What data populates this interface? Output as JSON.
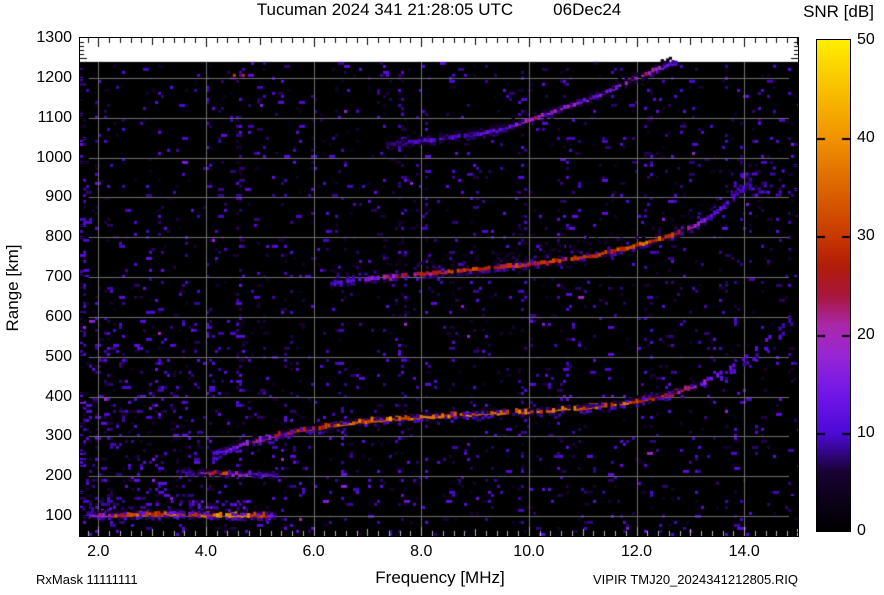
{
  "title": {
    "station_line": "Tucuman 2024 341 21:28:05 UTC",
    "date": "06Dec24"
  },
  "colorbar": {
    "title": "SNR [dB]",
    "unit": "dB",
    "min": 0,
    "max": 50,
    "tick_values": [
      0,
      10,
      20,
      30,
      40,
      50
    ],
    "tick_labels": [
      "0",
      "10",
      "20",
      "30",
      "40",
      "50"
    ]
  },
  "axes": {
    "x_label": "Frequency [MHz]",
    "y_label": "Range [km]",
    "x_tick_labels": [
      "2.0",
      "4.0",
      "6.0",
      "8.0",
      "10.0",
      "12.0",
      "14.0"
    ],
    "x_ticks_mhz": [
      2,
      4,
      6,
      8,
      10,
      12,
      14
    ],
    "y_tick_labels": [
      "100",
      "200",
      "300",
      "400",
      "500",
      "600",
      "700",
      "800",
      "900",
      "1000",
      "1100",
      "1200",
      "1300"
    ],
    "y_ticks_km": [
      100,
      200,
      300,
      400,
      500,
      600,
      700,
      800,
      900,
      1000,
      1100,
      1200,
      1300
    ],
    "f_min_mhz": 1.66,
    "f_max_mhz": 15.0,
    "r_min_km": 50,
    "r_max_km": 1300,
    "data_top_km": 1240
  },
  "footer": {
    "rx_mask": "RxMask 11111111",
    "file_name": "VIPIR  TMJ20_2024341212805.RIQ"
  },
  "chart_data": {
    "type": "heatmap",
    "title": "Tucuman 2024 341 21:28:05 UTC 06Dec24",
    "xlabel": "Frequency [MHz]",
    "ylabel": "Range [km]",
    "zlabel": "SNR [dB]",
    "xlim": [
      1.66,
      15.0
    ],
    "ylim": [
      50,
      1300
    ],
    "zlim": [
      0,
      50
    ],
    "grid": {
      "x_every_mhz": 2,
      "y_every_km": 100,
      "color": "#6e6e6e"
    },
    "background_value_db": 0,
    "colormap_stops": [
      [
        0,
        0,
        0,
        0
      ],
      [
        6,
        24,
        2,
        50
      ],
      [
        10,
        76,
        10,
        214
      ],
      [
        14,
        114,
        22,
        232
      ],
      [
        18,
        152,
        38,
        212
      ],
      [
        21,
        170,
        40,
        170
      ],
      [
        24,
        168,
        22,
        60
      ],
      [
        27,
        178,
        28,
        10
      ],
      [
        30,
        200,
        56,
        0
      ],
      [
        40,
        241,
        146,
        0
      ],
      [
        50,
        255,
        238,
        0
      ]
    ],
    "noise": {
      "seed": 42,
      "base_density": 0.03,
      "speckle_db": [
        3.5,
        12
      ],
      "cloud": {
        "f_max": 4.9,
        "km_min": 75,
        "km_max": 700,
        "peak_density": 0.17
      }
    },
    "rfi_lines": [
      {
        "f": 1.7,
        "km0": 60,
        "km1": 1240,
        "boost": 0.22,
        "w": 5
      },
      {
        "f": 1.95,
        "km0": 60,
        "km1": 1240,
        "boost": 0.12,
        "w": 4
      },
      {
        "f": 4.02,
        "km0": 60,
        "km1": 1240,
        "boost": 0.1,
        "w": 5
      },
      {
        "f": 4.58,
        "km0": 60,
        "km1": 1240,
        "boost": 0.2,
        "w": 6
      },
      {
        "f": 5.05,
        "km0": 60,
        "km1": 1240,
        "boost": 0.08,
        "w": 4
      },
      {
        "f": 5.42,
        "km0": 60,
        "km1": 1240,
        "boost": 0.1,
        "w": 5
      },
      {
        "f": 5.95,
        "km0": 400,
        "km1": 1240,
        "boost": 0.07,
        "w": 4
      },
      {
        "f": 6.5,
        "km0": 60,
        "km1": 1240,
        "boost": 0.12,
        "w": 5
      },
      {
        "f": 7.28,
        "km0": 60,
        "km1": 1240,
        "boost": 0.08,
        "w": 4
      },
      {
        "f": 7.62,
        "km0": 60,
        "km1": 1240,
        "boost": 0.19,
        "w": 8
      },
      {
        "f": 8.06,
        "km0": 300,
        "km1": 1240,
        "boost": 0.08,
        "w": 4
      },
      {
        "f": 8.52,
        "km0": 60,
        "km1": 1240,
        "boost": 0.09,
        "w": 5
      },
      {
        "f": 9.16,
        "km0": 60,
        "km1": 900,
        "boost": 0.06,
        "w": 4
      },
      {
        "f": 9.82,
        "km0": 60,
        "km1": 1240,
        "boost": 0.1,
        "w": 5
      },
      {
        "f": 10.55,
        "km0": 60,
        "km1": 1240,
        "boost": 0.07,
        "w": 4
      },
      {
        "f": 11.3,
        "km0": 200,
        "km1": 1100,
        "boost": 0.06,
        "w": 4
      },
      {
        "f": 12.15,
        "km0": 60,
        "km1": 1240,
        "boost": 0.09,
        "w": 5
      },
      {
        "f": 12.8,
        "km0": 60,
        "km1": 1240,
        "boost": 0.07,
        "w": 4
      },
      {
        "f": 13.65,
        "km0": 60,
        "km1": 1240,
        "boost": 0.08,
        "w": 5
      },
      {
        "f": 14.3,
        "km0": 60,
        "km1": 1240,
        "boost": 0.07,
        "w": 4
      },
      {
        "f": 14.82,
        "km0": 60,
        "km1": 1240,
        "boost": 0.08,
        "w": 4
      }
    ],
    "patches": [
      {
        "f0": 2.9,
        "f1": 4.75,
        "km0": 103,
        "km1": 140,
        "density": 0.3,
        "v0": 6,
        "v1": 14
      },
      {
        "f0": 1.7,
        "f1": 2.75,
        "km0": 93,
        "km1": 122,
        "density": 0.25,
        "v0": 6,
        "v1": 13
      },
      {
        "f0": 13.75,
        "f1": 14.7,
        "km0": 895,
        "km1": 985,
        "density": 0.15,
        "v0": 6,
        "v1": 12
      },
      {
        "f0": 4.5,
        "f1": 4.72,
        "km0": 1100,
        "km1": 1210,
        "density": 0.1,
        "v0": 18,
        "v1": 32
      }
    ],
    "traces": [
      {
        "name": "E-layer echo ~100 km",
        "pts": [
          [
            1.78,
            102,
            10
          ],
          [
            2.0,
            103,
            22
          ],
          [
            2.3,
            104,
            30
          ],
          [
            2.7,
            105,
            33
          ],
          [
            3.1,
            106,
            34
          ],
          [
            3.5,
            107,
            32
          ],
          [
            3.9,
            105,
            34
          ],
          [
            4.3,
            103,
            36
          ],
          [
            4.7,
            103,
            37
          ],
          [
            5.0,
            103,
            31
          ],
          [
            5.15,
            102,
            20
          ],
          [
            5.3,
            101,
            10
          ]
        ],
        "w": 5,
        "fa": 10,
        "fb": 6,
        "fv": 12
      },
      {
        "name": "Stratification ~210 km",
        "pts": [
          [
            3.55,
            213,
            8
          ],
          [
            3.8,
            211,
            12
          ],
          [
            4.0,
            210,
            24
          ],
          [
            4.15,
            209,
            30
          ],
          [
            4.35,
            208,
            28
          ],
          [
            4.6,
            207,
            16
          ],
          [
            4.85,
            206,
            13
          ],
          [
            5.1,
            205,
            12
          ],
          [
            5.35,
            204,
            9
          ]
        ],
        "w": 4,
        "fa": 8,
        "fb": 5,
        "fv": 9
      },
      {
        "name": "F-region 1st hop",
        "pts": [
          [
            4.12,
            258,
            9
          ],
          [
            4.3,
            264,
            13
          ],
          [
            4.55,
            276,
            16
          ],
          [
            4.8,
            286,
            18
          ],
          [
            5.1,
            296,
            20
          ],
          [
            5.45,
            308,
            24
          ],
          [
            5.8,
            317,
            27
          ],
          [
            6.2,
            326,
            30
          ],
          [
            6.6,
            333,
            32
          ],
          [
            7.0,
            339,
            33
          ],
          [
            7.4,
            344,
            34
          ],
          [
            7.8,
            348,
            33
          ],
          [
            8.2,
            351,
            35
          ],
          [
            8.6,
            354,
            34
          ],
          [
            9.0,
            357,
            35
          ],
          [
            9.4,
            360,
            33
          ],
          [
            9.8,
            362,
            34
          ],
          [
            10.2,
            365,
            35
          ],
          [
            10.6,
            369,
            34
          ],
          [
            11.0,
            373,
            33
          ],
          [
            11.4,
            379,
            32
          ],
          [
            11.8,
            386,
            31
          ],
          [
            12.1,
            393,
            29
          ],
          [
            12.4,
            401,
            26
          ],
          [
            12.7,
            411,
            22
          ],
          [
            13.0,
            424,
            18
          ],
          [
            13.3,
            440,
            15
          ]
        ],
        "w": 5,
        "fa": 9,
        "fb": 9,
        "fv": 11
      },
      {
        "name": "F asymptote O-mode",
        "pts": [
          [
            13.3,
            442,
            13
          ],
          [
            13.6,
            462,
            12
          ],
          [
            13.9,
            488,
            12
          ],
          [
            14.2,
            518,
            11
          ],
          [
            14.45,
            548,
            11
          ],
          [
            14.7,
            580,
            10
          ],
          [
            14.88,
            605,
            10
          ]
        ],
        "w": 4,
        "dash": true
      },
      {
        "name": "F asymptote X-mode",
        "pts": [
          [
            13.55,
            445,
            11
          ],
          [
            13.85,
            468,
            11
          ],
          [
            14.15,
            495,
            10
          ],
          [
            14.45,
            527,
            10
          ],
          [
            14.7,
            558,
            10
          ],
          [
            14.9,
            588,
            9
          ]
        ],
        "w": 4,
        "dash": true
      },
      {
        "name": "F-region 2nd hop",
        "pts": [
          [
            6.25,
            683,
            8
          ],
          [
            6.6,
            689,
            11
          ],
          [
            7.0,
            695,
            15
          ],
          [
            7.4,
            700,
            20
          ],
          [
            7.8,
            705,
            23
          ],
          [
            8.2,
            710,
            25
          ],
          [
            8.6,
            715,
            26
          ],
          [
            9.0,
            719,
            27
          ],
          [
            9.4,
            724,
            26
          ],
          [
            9.8,
            729,
            27
          ],
          [
            10.2,
            735,
            26
          ],
          [
            10.6,
            742,
            27
          ],
          [
            11.0,
            750,
            26
          ],
          [
            11.4,
            761,
            27
          ],
          [
            11.8,
            773,
            29
          ],
          [
            12.1,
            784,
            31
          ],
          [
            12.4,
            795,
            30
          ],
          [
            12.7,
            808,
            26
          ],
          [
            13.0,
            824,
            18
          ],
          [
            13.3,
            848,
            13
          ],
          [
            13.6,
            878,
            11
          ],
          [
            13.9,
            915,
            9
          ],
          [
            14.15,
            948,
            8
          ]
        ],
        "w": 4,
        "fa": 45,
        "fb": 4,
        "fv": 10
      },
      {
        "name": "F-region 3rd hop",
        "pts": [
          [
            7.35,
            1032,
            7
          ],
          [
            7.7,
            1038,
            9
          ],
          [
            8.1,
            1044,
            11
          ],
          [
            8.5,
            1050,
            11
          ],
          [
            8.9,
            1057,
            10
          ],
          [
            9.2,
            1064,
            11
          ],
          [
            9.5,
            1073,
            13
          ],
          [
            9.8,
            1085,
            16
          ],
          [
            10.1,
            1100,
            20
          ],
          [
            10.4,
            1113,
            17
          ],
          [
            10.7,
            1128,
            19
          ],
          [
            11.0,
            1143,
            15
          ],
          [
            11.3,
            1158,
            13
          ],
          [
            11.6,
            1176,
            16
          ],
          [
            11.9,
            1196,
            20
          ],
          [
            12.15,
            1210,
            24
          ],
          [
            12.4,
            1224,
            18
          ],
          [
            12.6,
            1234,
            12
          ],
          [
            12.75,
            1240,
            9
          ]
        ],
        "w": 4,
        "fa": 18,
        "fb": 6,
        "fv": 8
      }
    ]
  }
}
